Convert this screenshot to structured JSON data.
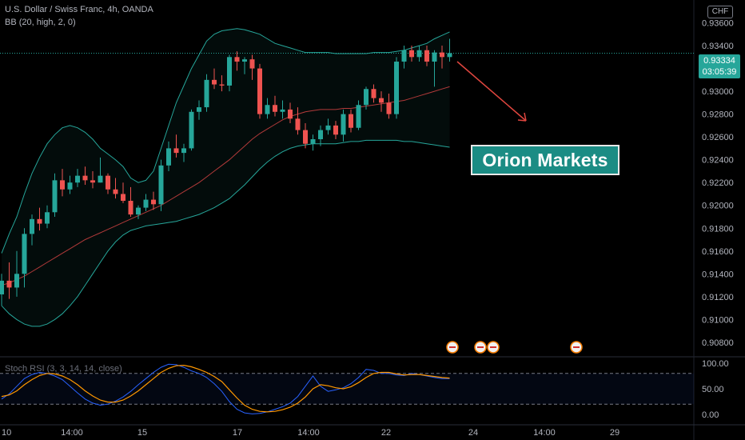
{
  "header": {
    "symbol_line": "U.S. Dollar / Swiss Franc, 4h, OANDA",
    "indicator_line": "BB (20, high, 2, 0)",
    "currency_badge": "CHF"
  },
  "price_tag": {
    "price": "0.93334",
    "countdown": "03:05:39"
  },
  "brand_label": "Orion Markets",
  "stoch_label": "Stoch RSI (3, 3, 14, 14, close)",
  "colors": {
    "up": "#26a69a",
    "down": "#ef5350",
    "band": "#26a69a",
    "basis": "#b23a3a",
    "k_line": "#2962ff",
    "d_line": "#ff9800",
    "arrow": "#e0463f",
    "axis_text": "#b2b5be"
  },
  "chart_data": [
    {
      "type": "candlestick",
      "title": "U.S. Dollar / Swiss Franc, 4h, OANDA",
      "ylim": [
        0.9068,
        0.938
      ],
      "y_ticks": [
        "0.93600",
        "0.93400",
        "0.93200",
        "0.93000",
        "0.92800",
        "0.92600",
        "0.92400",
        "0.92200",
        "0.92000",
        "0.91800",
        "0.91600",
        "0.91400",
        "0.91200",
        "0.91000",
        "0.90800"
      ],
      "x_ticks": [
        "10",
        "14:00",
        "15",
        "17",
        "14:00",
        "22",
        "24",
        "14:00",
        "29"
      ],
      "last_price": 0.93334,
      "candles": [
        [
          0.9122,
          0.914,
          0.9112,
          0.9134
        ],
        [
          0.9134,
          0.915,
          0.9118,
          0.9128
        ],
        [
          0.9128,
          0.916,
          0.912,
          0.914
        ],
        [
          0.914,
          0.918,
          0.9128,
          0.9175
        ],
        [
          0.9175,
          0.9192,
          0.9165,
          0.9188
        ],
        [
          0.9188,
          0.9198,
          0.9178,
          0.9184
        ],
        [
          0.9184,
          0.92,
          0.918,
          0.9194
        ],
        [
          0.9194,
          0.9228,
          0.919,
          0.9222
        ],
        [
          0.9222,
          0.9232,
          0.9208,
          0.9214
        ],
        [
          0.9214,
          0.9226,
          0.921,
          0.922
        ],
        [
          0.922,
          0.9232,
          0.9216,
          0.9226
        ],
        [
          0.9226,
          0.9234,
          0.9218,
          0.9222
        ],
        [
          0.9222,
          0.923,
          0.9215,
          0.922
        ],
        [
          0.922,
          0.9242,
          0.922,
          0.9226
        ],
        [
          0.9226,
          0.9228,
          0.921,
          0.9214
        ],
        [
          0.9214,
          0.9224,
          0.9206,
          0.921
        ],
        [
          0.921,
          0.922,
          0.9202,
          0.9204
        ],
        [
          0.9204,
          0.9216,
          0.919,
          0.9192
        ],
        [
          0.9192,
          0.92,
          0.9188,
          0.9198
        ],
        [
          0.9198,
          0.921,
          0.9195,
          0.9205
        ],
        [
          0.9205,
          0.9212,
          0.9196,
          0.9201
        ],
        [
          0.9201,
          0.924,
          0.9195,
          0.9235
        ],
        [
          0.9235,
          0.9256,
          0.923,
          0.925
        ],
        [
          0.925,
          0.9262,
          0.9242,
          0.9246
        ],
        [
          0.9246,
          0.9254,
          0.9238,
          0.925
        ],
        [
          0.925,
          0.9284,
          0.9248,
          0.9282
        ],
        [
          0.9282,
          0.9292,
          0.9275,
          0.9286
        ],
        [
          0.9286,
          0.9315,
          0.9282,
          0.931
        ],
        [
          0.931,
          0.932,
          0.9302,
          0.9306
        ],
        [
          0.9306,
          0.9314,
          0.93,
          0.9305
        ],
        [
          0.9305,
          0.9332,
          0.93,
          0.933
        ],
        [
          0.933,
          0.9335,
          0.9318,
          0.9326
        ],
        [
          0.9326,
          0.933,
          0.9315,
          0.9328
        ],
        [
          0.9328,
          0.9332,
          0.931,
          0.932
        ],
        [
          0.932,
          0.9324,
          0.9276,
          0.928
        ],
        [
          0.928,
          0.9294,
          0.9276,
          0.9288
        ],
        [
          0.9288,
          0.9296,
          0.9278,
          0.9282
        ],
        [
          0.9282,
          0.9292,
          0.9276,
          0.9284
        ],
        [
          0.9284,
          0.929,
          0.9272,
          0.9276
        ],
        [
          0.9276,
          0.9286,
          0.9262,
          0.9266
        ],
        [
          0.9266,
          0.9272,
          0.925,
          0.9254
        ],
        [
          0.9254,
          0.9262,
          0.9248,
          0.9258
        ],
        [
          0.9258,
          0.927,
          0.9252,
          0.9266
        ],
        [
          0.9266,
          0.9276,
          0.9262,
          0.927
        ],
        [
          0.927,
          0.9274,
          0.9258,
          0.9262
        ],
        [
          0.9262,
          0.9284,
          0.9256,
          0.928
        ],
        [
          0.928,
          0.9284,
          0.9264,
          0.9268
        ],
        [
          0.9268,
          0.9292,
          0.9266,
          0.9288
        ],
        [
          0.9288,
          0.9304,
          0.9284,
          0.9302
        ],
        [
          0.9302,
          0.9306,
          0.929,
          0.9294
        ],
        [
          0.9294,
          0.93,
          0.9282,
          0.929
        ],
        [
          0.929,
          0.9298,
          0.9276,
          0.928
        ],
        [
          0.928,
          0.933,
          0.9276,
          0.9326
        ],
        [
          0.9326,
          0.934,
          0.932,
          0.9336
        ],
        [
          0.9336,
          0.934,
          0.9326,
          0.933
        ],
        [
          0.933,
          0.934,
          0.9326,
          0.9336
        ],
        [
          0.9336,
          0.934,
          0.9322,
          0.9326
        ],
        [
          0.9326,
          0.9336,
          0.9304,
          0.9334
        ],
        [
          0.9334,
          0.934,
          0.932,
          0.933
        ],
        [
          0.933,
          0.9346,
          0.9326,
          0.93334
        ]
      ],
      "bollinger_upper": [
        0.9158,
        0.9175,
        0.919,
        0.921,
        0.9228,
        0.9242,
        0.9254,
        0.9262,
        0.9268,
        0.927,
        0.9268,
        0.9264,
        0.9258,
        0.925,
        0.9245,
        0.924,
        0.9234,
        0.9224,
        0.922,
        0.9222,
        0.923,
        0.925,
        0.927,
        0.929,
        0.9305,
        0.932,
        0.9332,
        0.9344,
        0.935,
        0.9353,
        0.9354,
        0.9355,
        0.9354,
        0.9352,
        0.935,
        0.9346,
        0.9342,
        0.934,
        0.9338,
        0.9336,
        0.9334,
        0.9334,
        0.9334,
        0.9334,
        0.9333,
        0.9333,
        0.9333,
        0.9333,
        0.9333,
        0.9334,
        0.9334,
        0.9334,
        0.9335,
        0.9336,
        0.9338,
        0.934,
        0.9342,
        0.9346,
        0.9349,
        0.9352
      ],
      "bollinger_basis": [
        0.913,
        0.9132,
        0.9135,
        0.9138,
        0.9142,
        0.9146,
        0.915,
        0.9154,
        0.9158,
        0.9162,
        0.9166,
        0.917,
        0.9173,
        0.9176,
        0.9179,
        0.9182,
        0.9185,
        0.9188,
        0.9191,
        0.9194,
        0.9197,
        0.92,
        0.9204,
        0.9208,
        0.9212,
        0.9216,
        0.922,
        0.9225,
        0.923,
        0.9235,
        0.924,
        0.9246,
        0.9252,
        0.9258,
        0.9263,
        0.9267,
        0.9271,
        0.9275,
        0.9278,
        0.928,
        0.9282,
        0.9283,
        0.9284,
        0.9284,
        0.9284,
        0.9285,
        0.9285,
        0.9286,
        0.9287,
        0.9288,
        0.9289,
        0.929,
        0.9291,
        0.9292,
        0.9294,
        0.9296,
        0.9298,
        0.93,
        0.9302,
        0.9304
      ],
      "bollinger_lower": [
        0.9112,
        0.9105,
        0.91,
        0.9096,
        0.9094,
        0.9094,
        0.9096,
        0.91,
        0.9105,
        0.9112,
        0.912,
        0.913,
        0.914,
        0.915,
        0.916,
        0.9168,
        0.9174,
        0.9178,
        0.918,
        0.9182,
        0.9183,
        0.9184,
        0.9185,
        0.9186,
        0.9188,
        0.919,
        0.9192,
        0.9195,
        0.9198,
        0.9202,
        0.9206,
        0.9212,
        0.9218,
        0.9225,
        0.9232,
        0.9238,
        0.9243,
        0.9247,
        0.925,
        0.9252,
        0.9253,
        0.9254,
        0.9254,
        0.9254,
        0.9254,
        0.9255,
        0.9256,
        0.9256,
        0.9257,
        0.9257,
        0.9257,
        0.9257,
        0.9257,
        0.9256,
        0.9256,
        0.9255,
        0.9254,
        0.9253,
        0.9252,
        0.9251
      ]
    },
    {
      "type": "line",
      "title": "Stoch RSI (3, 3, 14, 14, close)",
      "ylim": [
        0,
        100
      ],
      "y_ticks": [
        "100.00",
        "50.00",
        "0.00"
      ],
      "bands": [
        80,
        20
      ],
      "series": [
        {
          "name": "K",
          "values": [
            30,
            40,
            55,
            70,
            78,
            82,
            80,
            75,
            68,
            55,
            42,
            30,
            22,
            18,
            20,
            26,
            34,
            45,
            58,
            70,
            82,
            92,
            98,
            97,
            92,
            85,
            80,
            72,
            60,
            45,
            25,
            10,
            3,
            1,
            2,
            5,
            10,
            15,
            22,
            35,
            55,
            75,
            55,
            45,
            48,
            52,
            60,
            72,
            88,
            86,
            80,
            80,
            77,
            76,
            80,
            78,
            75,
            72,
            70,
            70
          ]
        },
        {
          "name": "D",
          "values": [
            35,
            38,
            46,
            58,
            68,
            76,
            80,
            79,
            75,
            68,
            58,
            46,
            36,
            28,
            24,
            24,
            28,
            36,
            46,
            58,
            70,
            82,
            90,
            95,
            96,
            93,
            88,
            82,
            74,
            64,
            48,
            32,
            18,
            10,
            6,
            5,
            6,
            9,
            14,
            22,
            34,
            50,
            58,
            56,
            52,
            50,
            54,
            62,
            72,
            80,
            82,
            82,
            79,
            77,
            78,
            78,
            76,
            74,
            72,
            71
          ]
        }
      ]
    }
  ]
}
